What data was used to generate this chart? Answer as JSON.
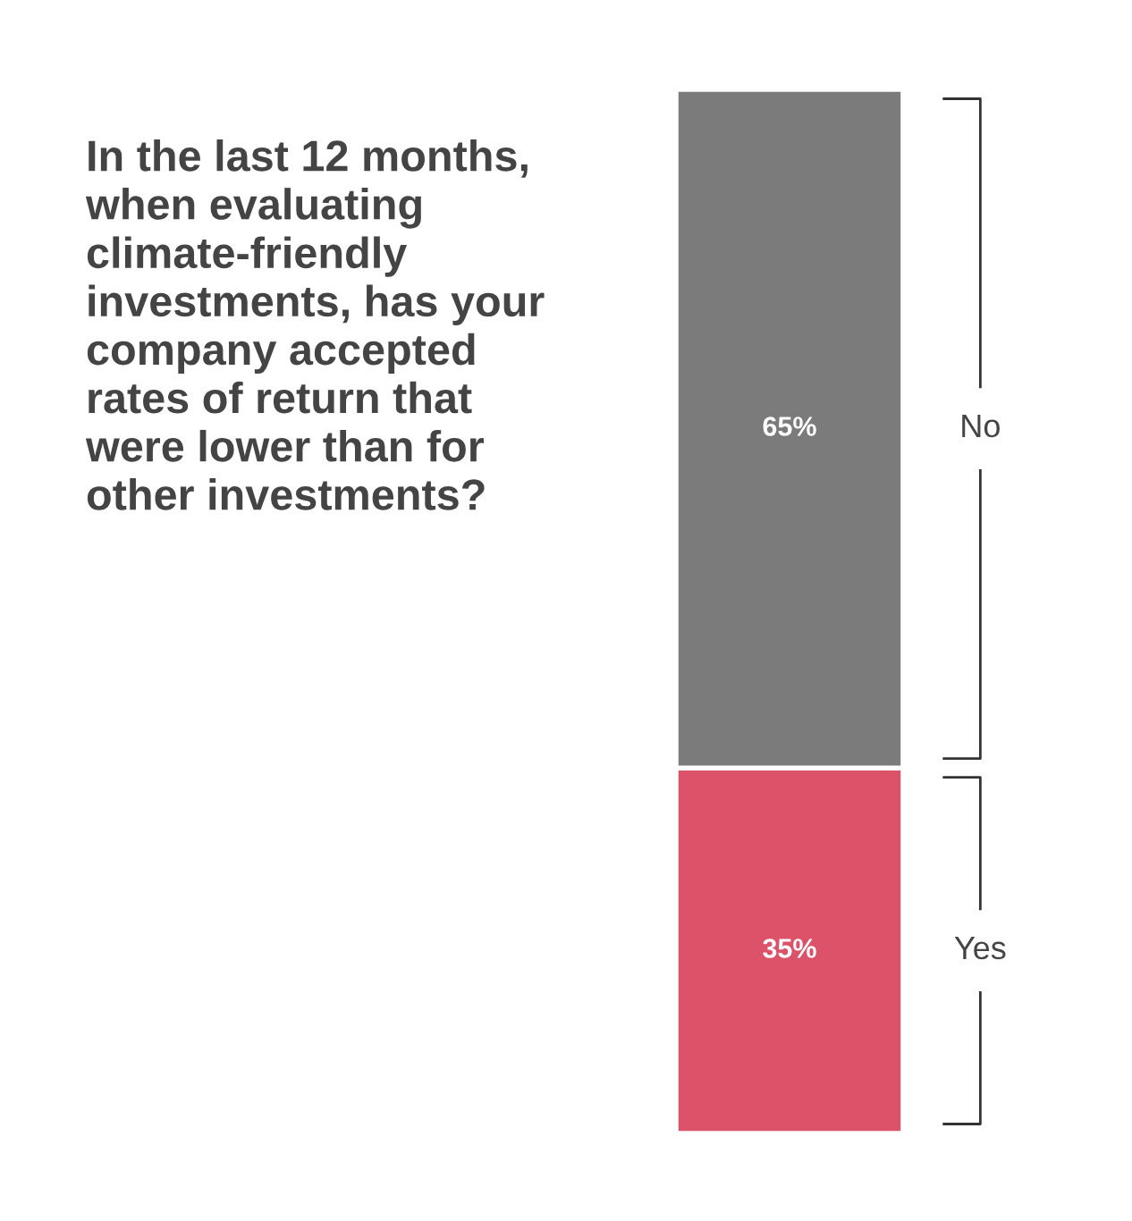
{
  "chart_data": {
    "type": "bar",
    "stacked": true,
    "title": "In the last 12 months,\nwhen evaluating\nclimate-friendly\ninvestments, has your\ncompany accepted\nrates of return that\nwere lower than for\nother investments?",
    "categories": [
      null
    ],
    "series": [
      {
        "name": "Yes",
        "color": "#dc5369",
        "values": [
          35
        ],
        "value_labels": [
          "35%"
        ]
      },
      {
        "name": "No",
        "color": "#7b7b7b",
        "values": [
          65
        ],
        "value_labels": [
          "65%"
        ]
      }
    ],
    "data_labels": false
  }
}
